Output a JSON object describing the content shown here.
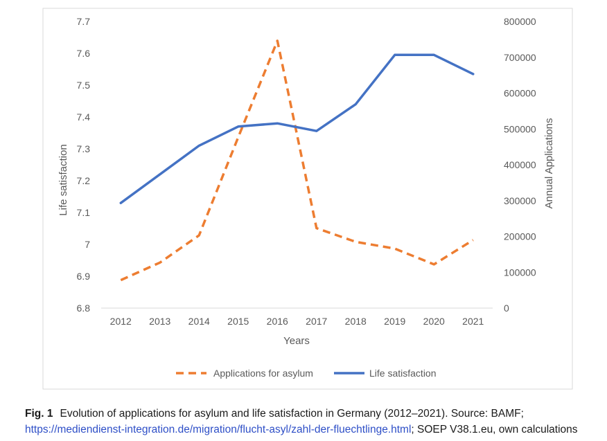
{
  "chart_data": {
    "type": "line",
    "categories": [
      "2012",
      "2013",
      "2014",
      "2015",
      "2016",
      "2017",
      "2018",
      "2019",
      "2020",
      "2021"
    ],
    "xlabel": "Years",
    "ylabel_left": "Life satisfaction",
    "ylabel_right": "Annual Applications",
    "ylim_left": [
      6.8,
      7.7
    ],
    "ylim_right": [
      0,
      800000
    ],
    "yticks_left": [
      "6.8",
      "6.9",
      "7",
      "7.1",
      "7.2",
      "7.3",
      "7.4",
      "7.5",
      "7.6",
      "7.7"
    ],
    "yticks_right": [
      "0",
      "100000",
      "200000",
      "300000",
      "400000",
      "500000",
      "600000",
      "700000",
      "800000"
    ],
    "series": [
      {
        "name": "Applications for asylum",
        "axis": "right",
        "style": "dashed",
        "color": "#ed7d31",
        "values": [
          78000,
          127000,
          203000,
          477000,
          746000,
          223000,
          185000,
          166000,
          122000,
          190000
        ]
      },
      {
        "name": "Life satisfaction",
        "axis": "left",
        "style": "solid",
        "color": "#4472c4",
        "values": [
          7.13,
          7.22,
          7.31,
          7.37,
          7.38,
          7.356,
          7.44,
          7.595,
          7.595,
          7.535
        ]
      }
    ],
    "legend_position": "bottom"
  },
  "caption": {
    "label": "Fig. 1",
    "text": "Evolution of applications for asylum and life satisfaction in Germany (2012–2021). Source: BAMF; ",
    "link": "https://mediendienst-integration.de/migration/flucht-asyl/zahl-der-fluechtlinge.html",
    "suffix": "; SOEP V38.1.eu, own calculations"
  }
}
